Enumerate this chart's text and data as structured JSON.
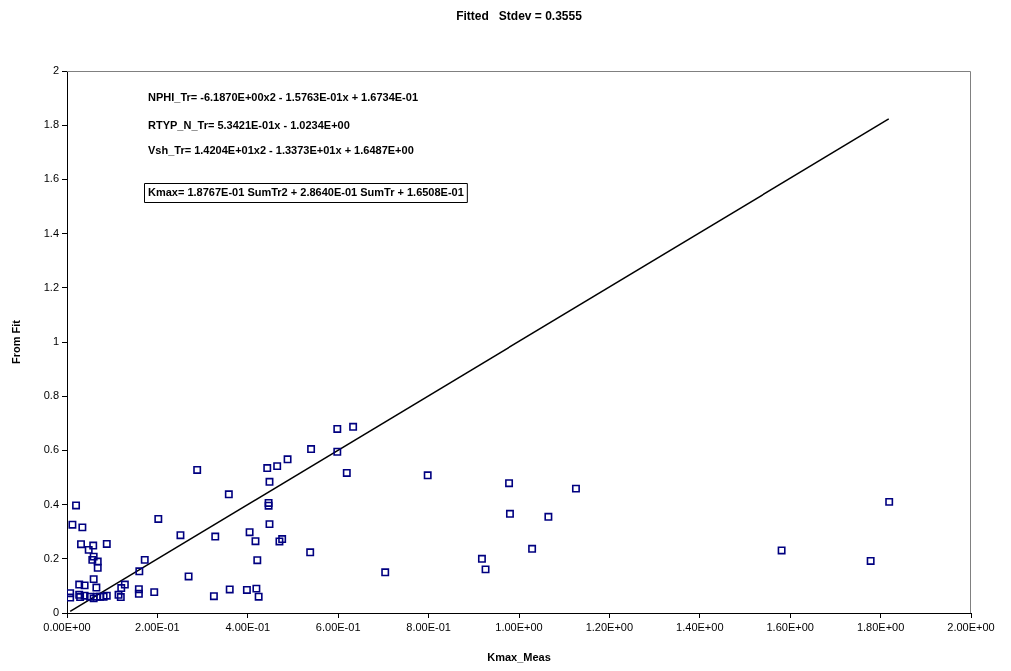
{
  "chart_data": {
    "type": "scatter",
    "title": "Fitted   Stdev = 0.3555",
    "xlabel": "Kmax_Meas",
    "ylabel": "From Fit",
    "annotations": [
      "NPHI_Tr= -6.1870E+00x2 - 1.5763E-01x + 1.6734E-01",
      "RTYP_N_Tr= 5.3421E-01x - 1.0234E+00",
      "Vsh_Tr= 1.4204E+01x2 - 1.3373E+01x + 1.6487E+00",
      "Kmax= 1.8767E-01 SumTr2 + 2.8640E-01 SumTr + 1.6508E-01"
    ],
    "xlim": [
      0,
      2
    ],
    "ylim": [
      0,
      2
    ],
    "xticks": [
      {
        "value": 0,
        "label": "0.00E+00"
      },
      {
        "value": 0.2,
        "label": "2.00E-01"
      },
      {
        "value": 0.4,
        "label": "4.00E-01"
      },
      {
        "value": 0.6,
        "label": "6.00E-01"
      },
      {
        "value": 0.8,
        "label": "8.00E-01"
      },
      {
        "value": 1,
        "label": "1.00E+00"
      },
      {
        "value": 1.2,
        "label": "1.20E+00"
      },
      {
        "value": 1.4,
        "label": "1.40E+00"
      },
      {
        "value": 1.6,
        "label": "1.60E+00"
      },
      {
        "value": 1.8,
        "label": "1.80E+00"
      },
      {
        "value": 2,
        "label": "2.00E+00"
      }
    ],
    "yticks": [
      0,
      0.2,
      0.4,
      0.6,
      0.8,
      1,
      1.2,
      1.4,
      1.6,
      1.8,
      2
    ],
    "grid": false,
    "legend": false,
    "marker": "square",
    "series": [
      {
        "color": "#000080",
        "x": [
          0.02,
          0.288,
          0.358,
          0.012,
          0.034,
          0.202,
          0.031,
          0.058,
          0.088,
          0.048,
          0.059,
          0.056,
          0.068,
          0.068,
          0.251,
          0.328,
          0.404,
          0.417,
          0.172,
          0.16,
          0.269,
          0.421,
          0.059,
          0.128,
          0.12,
          0.159,
          0.159,
          0.193,
          0.325,
          0.36,
          0.398,
          0.419,
          0.424,
          0.007,
          0.007,
          0.027,
          0.039,
          0.027,
          0.039,
          0.051,
          0.059,
          0.065,
          0.066,
          0.073,
          0.081,
          0.088,
          0.114,
          0.119,
          0.029,
          0.598,
          0.633,
          0.54,
          0.598,
          0.488,
          0.465,
          0.443,
          0.619,
          0.798,
          0.448,
          0.446,
          0.446,
          0.448,
          0.47,
          0.476,
          0.538,
          0.704,
          0.978,
          1.126,
          0.98,
          1.065,
          1.029,
          0.918,
          0.926,
          1.819,
          1.581,
          1.778
        ],
        "values": [
          0.397,
          0.528,
          0.438,
          0.326,
          0.316,
          0.347,
          0.254,
          0.249,
          0.255,
          0.233,
          0.208,
          0.196,
          0.19,
          0.167,
          0.287,
          0.282,
          0.298,
          0.265,
          0.196,
          0.154,
          0.135,
          0.195,
          0.125,
          0.105,
          0.092,
          0.088,
          0.071,
          0.077,
          0.062,
          0.087,
          0.085,
          0.09,
          0.06,
          0.073,
          0.057,
          0.105,
          0.102,
          0.067,
          0.064,
          0.06,
          0.054,
          0.094,
          0.06,
          0.06,
          0.06,
          0.064,
          0.067,
          0.059,
          0.059,
          0.679,
          0.687,
          0.605,
          0.595,
          0.567,
          0.542,
          0.535,
          0.517,
          0.508,
          0.484,
          0.406,
          0.396,
          0.328,
          0.264,
          0.273,
          0.224,
          0.15,
          0.479,
          0.459,
          0.366,
          0.355,
          0.237,
          0.2,
          0.161,
          0.41,
          0.231,
          0.192
        ]
      },
      {
        "type": "line",
        "color": "#000000",
        "marker": "none",
        "line_style": "solid",
        "x": [
          0.007,
          1.818
        ],
        "values": [
          0.006,
          1.823
        ]
      }
    ]
  }
}
